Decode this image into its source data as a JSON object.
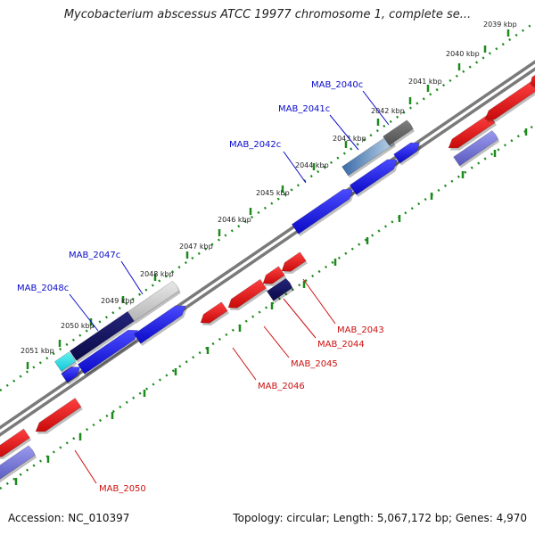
{
  "header": {
    "title": "Mycobacterium abscessus ATCC 19977 chromosome 1, complete se..."
  },
  "footer": {
    "accession": "Accession: NC_010397",
    "summary": "Topology: circular; Length: 5,067,172 bp; Genes: 4,970"
  },
  "colors": {
    "forward_gene": "#1010e0",
    "reverse_gene": "#e01010",
    "forward_label": "#0a0acc",
    "reverse_label": "#cc1010",
    "tick": "#1c8a1c",
    "backbone": "#7a7a7a"
  },
  "ticks": [
    "2039 kbp",
    "2040 kbp",
    "2041 kbp",
    "2042 kbp",
    "2043 kbp",
    "2044 kbp",
    "2045 kbp",
    "2046 kbp",
    "2047 kbp",
    "2048 kbp",
    "2049 kbp",
    "2050 kbp",
    "2051 kbp"
  ],
  "forward_labels": [
    "MAB_2040c",
    "MAB_2041c",
    "MAB_2042c",
    "MAB_2047c",
    "MAB_2048c"
  ],
  "reverse_labels": [
    "MAB_2043",
    "MAB_2044",
    "MAB_2045",
    "MAB_2046",
    "MAB_2050"
  ]
}
